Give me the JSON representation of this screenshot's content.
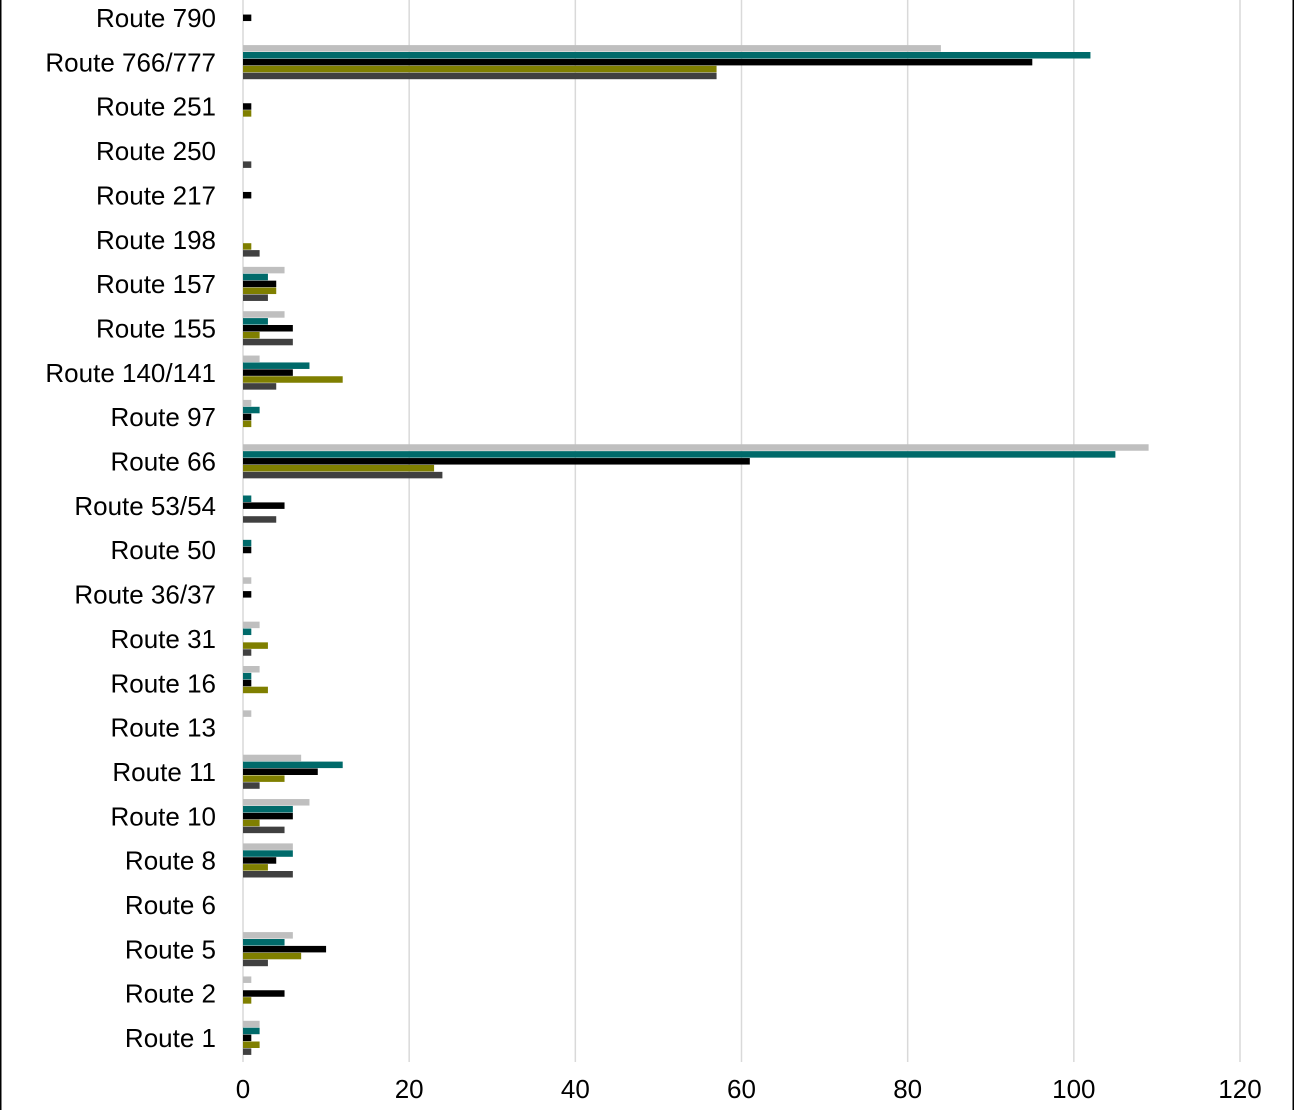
{
  "chart_data": {
    "type": "bar",
    "orientation": "horizontal",
    "title": "",
    "xlabel": "",
    "ylabel": "",
    "xlim": [
      0,
      120
    ],
    "x_ticks": [
      "0",
      "20",
      "40",
      "60",
      "80",
      "100",
      "120"
    ],
    "grid": true,
    "legend": "none",
    "categories": [
      "Route 790",
      "Route 766/777",
      "Route 251",
      "Route 250",
      "Route 217",
      "Route 198",
      "Route 157",
      "Route 155",
      "Route 140/141",
      "Route 97",
      "Route 66",
      "Route 53/54",
      "Route 50",
      "Route 36/37",
      "Route 31",
      "Route 16",
      "Route 13",
      "Route 11",
      "Route 10",
      "Route 8",
      "Route 6",
      "Route 5",
      "Route 2",
      "Route 1"
    ],
    "series": [
      {
        "color": "#bfbfbf",
        "values": [
          0,
          84,
          0,
          0,
          0,
          0,
          5,
          5,
          2,
          1,
          109,
          0,
          0,
          1,
          2,
          2,
          1,
          7,
          8,
          6,
          0,
          6,
          1,
          2
        ]
      },
      {
        "color": "#006a6a",
        "values": [
          0,
          102,
          0,
          0,
          0,
          0,
          3,
          3,
          8,
          2,
          105,
          1,
          1,
          0,
          1,
          1,
          0,
          12,
          6,
          6,
          0,
          5,
          0,
          2
        ]
      },
      {
        "color": "#000000",
        "values": [
          1,
          95,
          1,
          0,
          1,
          0,
          4,
          6,
          6,
          1,
          61,
          5,
          1,
          1,
          0,
          1,
          0,
          9,
          6,
          4,
          0,
          10,
          5,
          1
        ]
      },
      {
        "color": "#7f7f00",
        "values": [
          0,
          57,
          1,
          0,
          0,
          1,
          4,
          2,
          12,
          1,
          23,
          0,
          0,
          0,
          3,
          3,
          0,
          5,
          2,
          3,
          0,
          7,
          1,
          2
        ]
      },
      {
        "color": "#404040",
        "values": [
          0,
          57,
          0,
          1,
          0,
          2,
          3,
          6,
          4,
          0,
          24,
          4,
          0,
          0,
          1,
          0,
          0,
          2,
          5,
          6,
          0,
          3,
          0,
          1
        ]
      }
    ]
  }
}
